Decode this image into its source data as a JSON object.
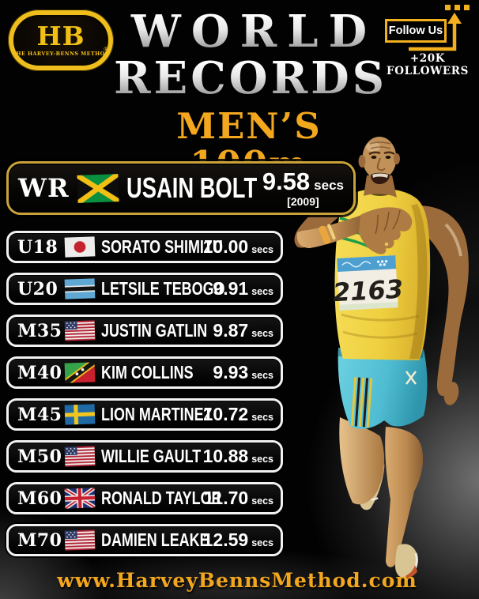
{
  "brand": {
    "monogram": "HB",
    "tagline": "THE HARVEY-BENNS METHOD",
    "registered_mark": "®"
  },
  "header": {
    "title_line1": "WORLD",
    "title_line2": "RECORDS",
    "subtitle": "MEN’S 100m"
  },
  "follow": {
    "button_label": "Follow Us",
    "followers_label": "+20K FOLLOWERS"
  },
  "world_record": {
    "category": "WR",
    "flag": "jamaica",
    "name": "USAIN BOLT",
    "time": "9.58",
    "unit": "secs",
    "year": "[2009]"
  },
  "records": [
    {
      "category": "U18",
      "flag": "japan",
      "name": "SORATO SHIMIZU",
      "time": "10.00",
      "unit": "secs"
    },
    {
      "category": "U20",
      "flag": "botswana",
      "name": "LETSILE TEBOGO",
      "time": "9.91",
      "unit": "secs"
    },
    {
      "category": "M35",
      "flag": "usa",
      "name": "JUSTIN GATLIN",
      "time": "9.87",
      "unit": "secs"
    },
    {
      "category": "M40",
      "flag": "saint-kitts-nevis",
      "name": "KIM COLLINS",
      "time": "9.93",
      "unit": "secs"
    },
    {
      "category": "M45",
      "flag": "sweden",
      "name": "LION MARTINEZ",
      "time": "10.72",
      "unit": "secs"
    },
    {
      "category": "M50",
      "flag": "usa",
      "name": "WILLIE GAULT",
      "time": "10.88",
      "unit": "secs"
    },
    {
      "category": "M60",
      "flag": "uk",
      "name": "RONALD TAYLOR",
      "time": "11.70",
      "unit": "secs"
    },
    {
      "category": "M70",
      "flag": "usa",
      "name": "DAMIEN LEAKE",
      "time": "12.59",
      "unit": "secs"
    }
  ],
  "athlete": {
    "bib_number": "2163"
  },
  "footer": {
    "website": "www.HarveyBennsMethod.com"
  },
  "colors": {
    "gold": "#F2B01E",
    "gold_dark": "#C9A23A",
    "title_silver": "#DADADA",
    "row_border_white": "#F2F2F2",
    "background": "#000000",
    "singlet_yellow": "#F0D23C",
    "shorts_teal": "#57C3D9"
  }
}
